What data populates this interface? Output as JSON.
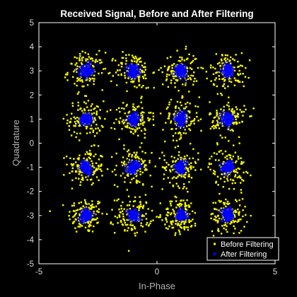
{
  "chart_data": {
    "type": "scatter",
    "title": "Received Signal, Before and After Filtering",
    "xlabel": "In-Phase",
    "ylabel": "Quadrature",
    "xlim": [
      -5,
      5
    ],
    "ylim": [
      -5,
      5
    ],
    "xticks": [
      -5,
      0,
      5
    ],
    "yticks": [
      -5,
      -4,
      -3,
      -2,
      -1,
      0,
      1,
      2,
      3,
      4,
      5
    ],
    "grid": false,
    "legend_position": "bottom-right",
    "constellation_points": {
      "i": [
        -3,
        -1,
        1,
        3
      ],
      "q": [
        -3,
        -1,
        1,
        3
      ]
    },
    "series": [
      {
        "name": "Before Filtering",
        "color": "#ffff00",
        "marker": "square",
        "spread": 0.38
      },
      {
        "name": "After Filtering",
        "color": "#0000ff",
        "marker": "circle",
        "spread": 0.12
      }
    ]
  }
}
